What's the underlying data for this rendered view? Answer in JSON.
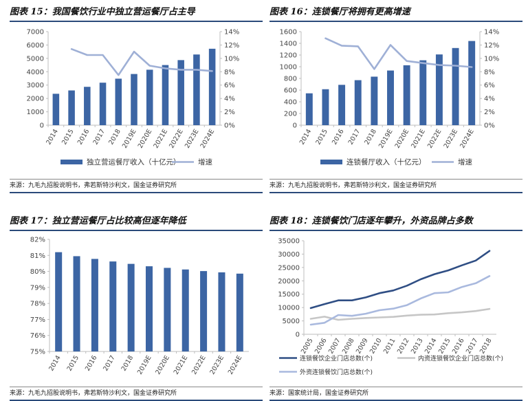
{
  "colors": {
    "bar": "#3c65a4",
    "rate_line": "#9fb0d6",
    "chain_stores": "#2f4e84",
    "domestic_chain": "#c6c6c6",
    "foreign_chain": "#a9b9de",
    "title_rule": "#2a4a7a",
    "axis": "#bdbdbd"
  },
  "panels": [
    {
      "title": "图表 15：我国餐饮行业中独立营运餐厅占主导",
      "source": "来源：九毛九招股说明书，弗若斯特沙利文，国金证券研究所"
    },
    {
      "title": "图表 16：连锁餐厅将拥有更高增速",
      "source": "来源：九毛九招股说明书，弗若斯特沙利文，国金证券研究所"
    },
    {
      "title": "图表 17：独立营运餐厅占比较高但逐年降低",
      "source": "来源：九毛九招股说明书，弗若斯特沙利文，国金证券研究所"
    },
    {
      "title": "图表 18：连锁餐饮门店逐年攀升，外资品牌占多数",
      "source": "来源：国家统计局，国金证券研究所"
    }
  ],
  "chart_data": [
    {
      "type": "bar",
      "categories": [
        "2014",
        "2015",
        "2016",
        "2017",
        "2018",
        "2019E",
        "2020E",
        "2021E",
        "2022E",
        "2023E",
        "2024E"
      ],
      "series": [
        {
          "name": "独立营运餐厅收入（十亿元）",
          "type": "bar",
          "axis": "left",
          "values": [
            2350,
            2600,
            2870,
            3180,
            3480,
            3830,
            4150,
            4500,
            4870,
            5290,
            5720
          ]
        },
        {
          "name": "增速",
          "type": "line",
          "axis": "right",
          "values": [
            null,
            11.4,
            10.5,
            10.5,
            7.5,
            11.0,
            8.9,
            8.5,
            8.3,
            8.3,
            8.1
          ]
        }
      ],
      "ylim_left": [
        0,
        7000
      ],
      "yticks_left": [
        "0",
        "1000",
        "2000",
        "3000",
        "4000",
        "5000",
        "6000",
        "7000"
      ],
      "ylim_right": [
        0,
        14
      ],
      "yticks_right": [
        "0%",
        "2%",
        "4%",
        "6%",
        "8%",
        "10%",
        "12%",
        "14%"
      ],
      "legend": "bottom"
    },
    {
      "type": "bar",
      "categories": [
        "2014",
        "2015",
        "2016",
        "2017",
        "2018",
        "2019E",
        "2020E",
        "2021E",
        "2022E",
        "2023E",
        "2024E"
      ],
      "series": [
        {
          "name": "连锁餐厅收入（十亿元）",
          "type": "bar",
          "axis": "left",
          "values": [
            545,
            615,
            690,
            770,
            830,
            935,
            1025,
            1110,
            1210,
            1320,
            1440
          ]
        },
        {
          "name": "增速",
          "type": "line",
          "axis": "right",
          "values": [
            null,
            13.0,
            11.9,
            11.8,
            8.4,
            12.0,
            9.6,
            9.3,
            9.0,
            8.9,
            8.7
          ]
        }
      ],
      "ylim_left": [
        0,
        1600
      ],
      "yticks_left": [
        "0",
        "200",
        "400",
        "600",
        "800",
        "1000",
        "1200",
        "1400",
        "1600"
      ],
      "ylim_right": [
        0,
        14
      ],
      "yticks_right": [
        "0%",
        "2%",
        "4%",
        "6%",
        "8%",
        "10%",
        "12%",
        "14%"
      ],
      "legend": "bottom"
    },
    {
      "type": "bar",
      "categories": [
        "2014",
        "2015",
        "2016",
        "2017",
        "2018",
        "2019E",
        "2020E",
        "2021E",
        "2022E",
        "2023E",
        "2024E"
      ],
      "series": [
        {
          "type": "bar",
          "axis": "left",
          "values": [
            81.2,
            80.95,
            80.78,
            80.62,
            80.47,
            80.32,
            80.22,
            80.12,
            80.02,
            79.94,
            79.86
          ]
        }
      ],
      "ylim_left": [
        75,
        82
      ],
      "yticks_left": [
        "75%",
        "76%",
        "77%",
        "78%",
        "79%",
        "80%",
        "81%",
        "82%"
      ]
    },
    {
      "type": "line",
      "categories": [
        "2005",
        "2006",
        "2007",
        "2008",
        "2009",
        "2010",
        "2011",
        "2012",
        "2013",
        "2014",
        "2015",
        "2016",
        "2017",
        "2018"
      ],
      "series": [
        {
          "name": "连锁餐饮企业门店总数(个)",
          "colorKey": "chain_stores",
          "values": [
            9800,
            11300,
            12700,
            12700,
            13800,
            15400,
            16400,
            18200,
            20600,
            22500,
            23900,
            25800,
            27600,
            31200
          ]
        },
        {
          "name": "内资连锁餐饮企业门店总数(个)",
          "colorKey": "domestic_chain",
          "values": [
            5800,
            6600,
            5400,
            5800,
            6100,
            6300,
            6500,
            7000,
            7300,
            7400,
            7900,
            8200,
            8700,
            9500
          ]
        },
        {
          "name": "外资连锁餐饮门店总数(个)",
          "colorKey": "foreign_chain",
          "values": [
            3600,
            4300,
            7200,
            6900,
            7700,
            9000,
            9600,
            10900,
            13400,
            15400,
            15700,
            17700,
            19100,
            21800
          ]
        }
      ],
      "ylim_left": [
        0,
        35000
      ],
      "yticks_left": [
        "0",
        "5000",
        "10000",
        "15000",
        "20000",
        "25000",
        "30000",
        "35000"
      ],
      "legend": "bottom"
    }
  ]
}
